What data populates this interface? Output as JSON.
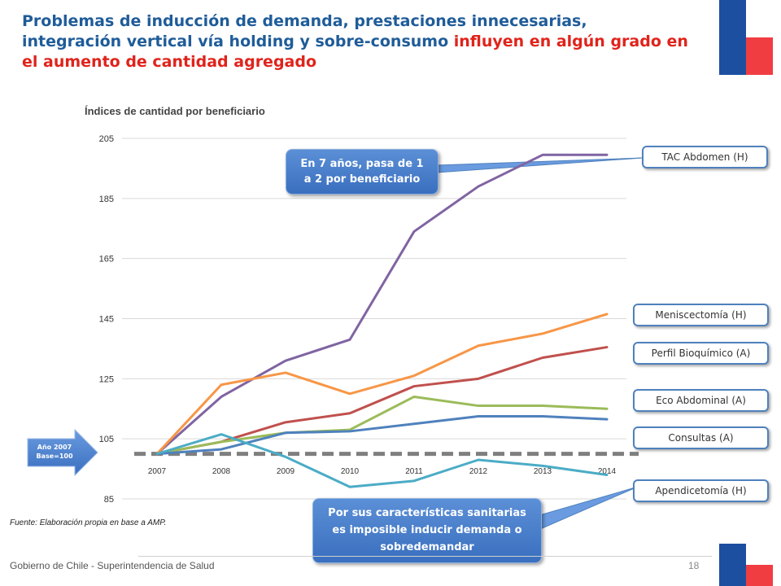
{
  "title": {
    "part1": "Problemas de inducción de demanda, prestaciones innecesarias, integración vertical vía holding y sobre-consumo ",
    "part2": "influyen en algún grado en el aumento de cantidad agregado"
  },
  "colors": {
    "title_blue": "#1f5c99",
    "title_red": "#e0231b",
    "flag_blue": "#1c4fa0",
    "flag_red": "#ef3d42"
  },
  "chart_data": {
    "type": "line",
    "title": "Índices de cantidad por beneficiario",
    "x": [
      "2007",
      "2008",
      "2009",
      "2010",
      "2011",
      "2012",
      "2013",
      "2014"
    ],
    "ylim": [
      85,
      205
    ],
    "yticks": [
      "85",
      "105",
      "125",
      "145",
      "165",
      "185",
      "205"
    ],
    "baseline": 100,
    "grid": true,
    "series": [
      {
        "name": "TAC Abdomen (H)",
        "color": "#8064a2",
        "values": [
          100,
          119,
          131,
          138,
          174,
          189,
          199.5,
          199.5
        ]
      },
      {
        "name": "Meniscectomía (H)",
        "color": "#f79646",
        "values": [
          100,
          123,
          127,
          120,
          126,
          136,
          140,
          146.5
        ]
      },
      {
        "name": "Perfil Bioquímico (A)",
        "color": "#c0504d",
        "values": [
          100,
          104,
          110.5,
          113.5,
          122.5,
          125,
          132,
          135.5
        ]
      },
      {
        "name": "Eco Abdominal (A)",
        "color": "#9bbb59",
        "values": [
          100,
          104,
          107,
          108,
          119,
          116,
          116,
          115
        ]
      },
      {
        "name": "Consultas (A)",
        "color": "#4f81bd",
        "values": [
          100,
          101.5,
          107,
          107.5,
          110,
          112.5,
          112.5,
          111.5
        ]
      },
      {
        "name": "Apendicetomía (H)",
        "color": "#4bacc6",
        "values": [
          100,
          106.5,
          99,
          89,
          91,
          98,
          96,
          93
        ]
      }
    ]
  },
  "callouts": {
    "tac_note_line1": "En 7 años, pasa de 1",
    "tac_note_line2": "a 2 por beneficiario",
    "apend_note_line1": "Por sus características sanitarias",
    "apend_note_line2": "es imposible inducir demanda o",
    "apend_note_line3": "sobredemandar",
    "base_line1": "Año 2007",
    "base_line2": "Base=100"
  },
  "source": "Fuente: Elaboración propia en base a AMP.",
  "footer": {
    "org": "Gobierno de Chile - Superintendencia de Salud",
    "page": "18"
  }
}
